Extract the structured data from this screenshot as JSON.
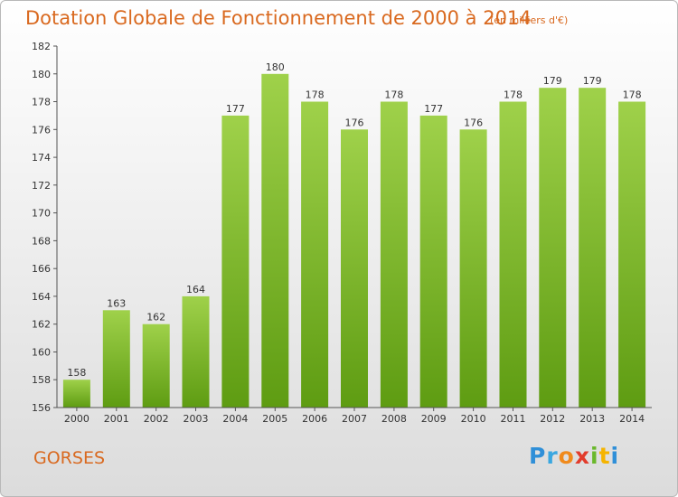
{
  "page": {
    "title": "Dotation Globale de Fonctionnement de 2000 à 2014",
    "unit_note": "(en milliers d'€)",
    "location": "GORSES",
    "logo": "Proxiti"
  },
  "colors": {
    "title": "#d9691f",
    "bar_top": "#9fd14a",
    "bar_bottom": "#5e9c12",
    "axis": "#555555"
  },
  "chart_data": {
    "type": "bar",
    "categories": [
      "2000",
      "2001",
      "2002",
      "2003",
      "2004",
      "2005",
      "2006",
      "2007",
      "2008",
      "2009",
      "2010",
      "2011",
      "2012",
      "2013",
      "2014"
    ],
    "values": [
      158,
      163,
      162,
      164,
      177,
      180,
      178,
      176,
      178,
      177,
      176,
      178,
      179,
      179,
      178
    ],
    "ylim": [
      156,
      182
    ],
    "yticks": [
      156,
      158,
      160,
      162,
      164,
      166,
      168,
      170,
      172,
      174,
      176,
      178,
      180,
      182
    ],
    "grid": false,
    "legend": "none",
    "data_labels": true
  }
}
